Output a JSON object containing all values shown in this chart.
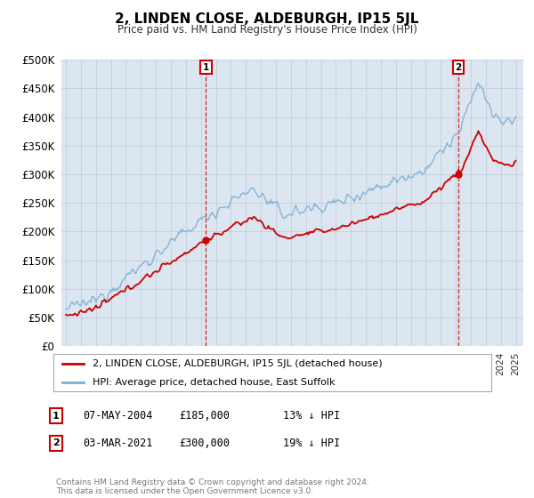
{
  "title": "2, LINDEN CLOSE, ALDEBURGH, IP15 5JL",
  "subtitle": "Price paid vs. HM Land Registry's House Price Index (HPI)",
  "legend_line1": "2, LINDEN CLOSE, ALDEBURGH, IP15 5JL (detached house)",
  "legend_line2": "HPI: Average price, detached house, East Suffolk",
  "sale1_date": "07-MAY-2004",
  "sale1_price": 185000,
  "sale1_label": "1",
  "sale1_pct": "13% ↓ HPI",
  "sale2_date": "03-MAR-2021",
  "sale2_price": 300000,
  "sale2_label": "2",
  "sale2_pct": "19% ↓ HPI",
  "footer": "Contains HM Land Registry data © Crown copyright and database right 2024.\nThis data is licensed under the Open Government Licence v3.0.",
  "red_color": "#cc0000",
  "blue_color": "#7bafd4",
  "background_color": "#dce6f0",
  "plot_bg": "#ffffff",
  "ylim": [
    0,
    500000
  ],
  "xlabel_color": "#333333",
  "grid_color": "#c0c8d8"
}
